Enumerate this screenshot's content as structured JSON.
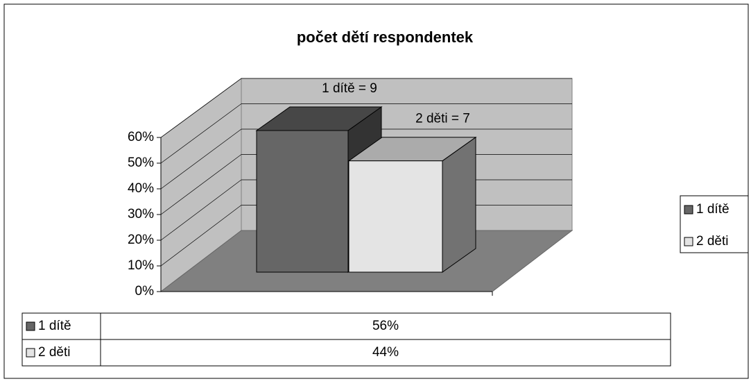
{
  "chart_data": {
    "type": "bar3d",
    "title": "počet dětí respondentek",
    "series": [
      {
        "name": "1 dítě",
        "color": "#666666",
        "values": [
          56
        ],
        "value_labels": [
          "56%"
        ],
        "annotation": "1 dítě = 9"
      },
      {
        "name": "2 děti",
        "color": "#e4e4e4",
        "values": [
          44
        ],
        "value_labels": [
          "44%"
        ],
        "annotation": "2 děti = 7"
      }
    ],
    "ylim": [
      0,
      60
    ],
    "yticks": [
      {
        "value": 0,
        "label": "0%"
      },
      {
        "value": 10,
        "label": "10%"
      },
      {
        "value": 20,
        "label": "20%"
      },
      {
        "value": 30,
        "label": "30%"
      },
      {
        "value": 40,
        "label": "40%"
      },
      {
        "value": 50,
        "label": "50%"
      },
      {
        "value": 60,
        "label": "60%"
      }
    ],
    "grid": true,
    "legend": "right"
  }
}
